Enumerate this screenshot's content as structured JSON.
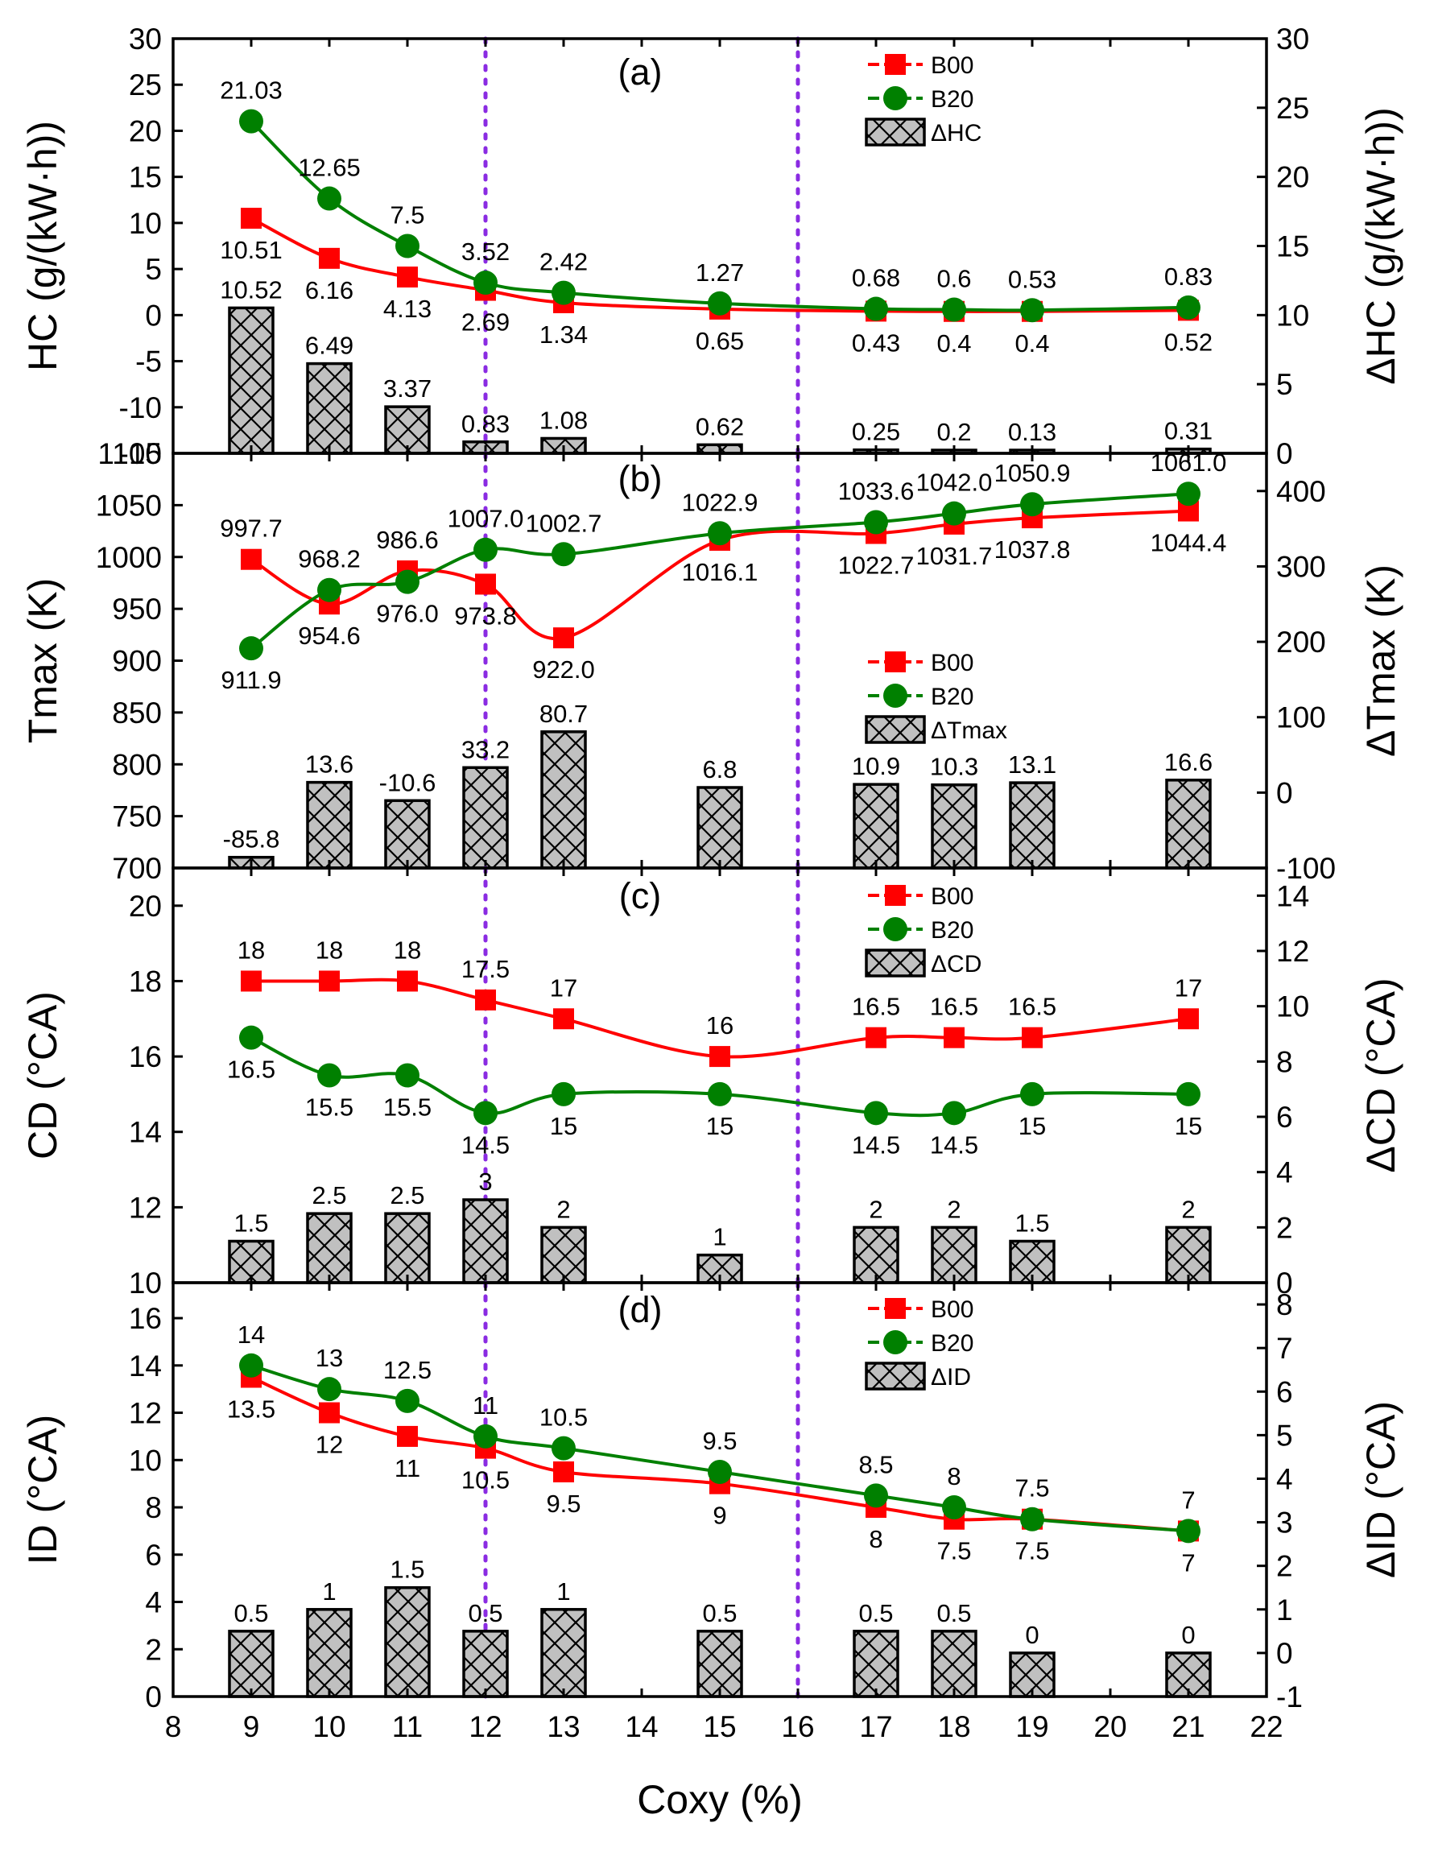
{
  "figure": {
    "xlabel": "Coxy (%)",
    "x_ticks": [
      8,
      9,
      10,
      11,
      12,
      13,
      14,
      15,
      16,
      17,
      18,
      19,
      20,
      21,
      22
    ],
    "xlim": [
      8,
      22
    ],
    "vlines": [
      12,
      16
    ],
    "colors": {
      "B00": "#ff0000",
      "B20": "#008000",
      "bar": "#c0c0c0",
      "vline": "#8a2be2"
    }
  },
  "chart_data": [
    {
      "type": "line+bar",
      "panel_label": "(a)",
      "ylabel": "HC (g/(kW·h))",
      "y2label": "ΔHC (g/(kW·h))",
      "ylim": [
        -15,
        30
      ],
      "y_ticks": [
        -15,
        -10,
        -5,
        0,
        5,
        10,
        15,
        20,
        25,
        30
      ],
      "y2lim": [
        0,
        30
      ],
      "y2_ticks": [
        0,
        5,
        10,
        15,
        20,
        25,
        30
      ],
      "x": [
        9,
        10,
        11,
        12,
        13,
        15,
        17,
        18,
        19,
        21
      ],
      "series": [
        {
          "name": "B00",
          "values": [
            10.51,
            6.16,
            4.13,
            2.69,
            1.34,
            0.65,
            0.43,
            0.4,
            0.4,
            0.52
          ],
          "labels": [
            "10.51",
            "6.16",
            "4.13",
            "2.69",
            "1.34",
            "0.65",
            "0.43",
            "0.4",
            "0.4",
            "0.52"
          ]
        },
        {
          "name": "B20",
          "values": [
            21.03,
            12.65,
            7.5,
            3.52,
            2.42,
            1.27,
            0.68,
            0.6,
            0.53,
            0.83
          ],
          "labels": [
            "21.03",
            "12.65",
            "7.5",
            "3.52",
            "2.42",
            "1.27",
            "0.68",
            "0.6",
            "0.53",
            "0.83"
          ]
        }
      ],
      "bars": {
        "name": "ΔHC",
        "values": [
          10.52,
          6.49,
          3.37,
          0.83,
          1.08,
          0.62,
          0.25,
          0.2,
          0.13,
          0.31
        ],
        "labels": [
          "10.52",
          "6.49",
          "3.37",
          "0.83",
          "1.08",
          "0.62",
          "0.25",
          "0.2",
          "0.13",
          "0.31"
        ]
      },
      "legend": [
        "B00",
        "B20",
        "ΔHC"
      ],
      "legend_position": "top-right"
    },
    {
      "type": "line+bar",
      "panel_label": "(b)",
      "ylabel": "Tmax (K)",
      "y2label": "ΔTmax (K)",
      "ylim": [
        700,
        1100
      ],
      "y_ticks": [
        700,
        750,
        800,
        850,
        900,
        950,
        1000,
        1050,
        1100
      ],
      "y2lim": [
        -100,
        450
      ],
      "y2_ticks": [
        -100,
        0,
        100,
        200,
        300,
        400
      ],
      "x": [
        9,
        10,
        11,
        12,
        13,
        15,
        17,
        18,
        19,
        21
      ],
      "series": [
        {
          "name": "B00",
          "values": [
            997.7,
            954.6,
            986.6,
            973.8,
            922.0,
            1016.1,
            1022.7,
            1031.7,
            1037.8,
            1044.4
          ],
          "labels": [
            "997.7",
            "954.6",
            "986.6",
            "973.8",
            "922.0",
            "1016.1",
            "1022.7",
            "1031.7",
            "1037.8",
            "1044.4"
          ]
        },
        {
          "name": "B20",
          "values": [
            911.9,
            968.2,
            976.0,
            1007.0,
            1002.7,
            1022.9,
            1033.6,
            1042.0,
            1050.9,
            1061.0
          ],
          "labels": [
            "911.9",
            "968.2",
            "976.0",
            "1007.0",
            "1002.7",
            "1022.9",
            "1033.6",
            "1042.0",
            "1050.9",
            "1061.0"
          ]
        }
      ],
      "bars": {
        "name": "ΔTmax",
        "values": [
          -85.8,
          13.6,
          -10.6,
          33.2,
          80.7,
          6.8,
          10.9,
          10.3,
          13.1,
          16.6
        ],
        "labels": [
          "-85.8",
          "13.6",
          "-10.6",
          "33.2",
          "80.7",
          "6.8",
          "10.9",
          "10.3",
          "13.1",
          "16.6"
        ]
      },
      "legend": [
        "B00",
        "B20",
        "ΔTmax"
      ],
      "legend_position": "center-right"
    },
    {
      "type": "line+bar",
      "panel_label": "(c)",
      "ylabel": "CD (°CA)",
      "y2label": "ΔCD (°CA)",
      "ylim": [
        10,
        21
      ],
      "y_ticks": [
        10,
        12,
        14,
        16,
        18,
        20
      ],
      "y2lim": [
        0,
        15
      ],
      "y2_ticks": [
        0,
        2,
        4,
        6,
        8,
        10,
        12,
        14
      ],
      "x": [
        9,
        10,
        11,
        12,
        13,
        15,
        17,
        18,
        19,
        21
      ],
      "series": [
        {
          "name": "B00",
          "values": [
            18,
            18,
            18,
            17.5,
            17,
            16,
            16.5,
            16.5,
            16.5,
            17
          ],
          "labels": [
            "18",
            "18",
            "18",
            "17.5",
            "17",
            "16",
            "16.5",
            "16.5",
            "16.5",
            "17"
          ]
        },
        {
          "name": "B20",
          "values": [
            16.5,
            15.5,
            15.5,
            14.5,
            15,
            15,
            14.5,
            14.5,
            15,
            15
          ],
          "labels": [
            "16.5",
            "15.5",
            "15.5",
            "14.5",
            "15",
            "15",
            "14.5",
            "14.5",
            "15",
            "15"
          ]
        }
      ],
      "bars": {
        "name": "ΔCD",
        "values": [
          1.5,
          2.5,
          2.5,
          3,
          2,
          1,
          2,
          2,
          1.5,
          2
        ],
        "labels": [
          "1.5",
          "2.5",
          "2.5",
          "3",
          "2",
          "1",
          "2",
          "2",
          "1.5",
          "2"
        ]
      },
      "legend": [
        "B00",
        "B20",
        "ΔCD"
      ],
      "legend_position": "top-right"
    },
    {
      "type": "line+bar",
      "panel_label": "(d)",
      "ylabel": "ID (°CA)",
      "y2label": "ΔID (°CA)",
      "ylim": [
        0,
        17.5
      ],
      "y_ticks": [
        0,
        2,
        4,
        6,
        8,
        10,
        12,
        14,
        16
      ],
      "y2lim": [
        -1,
        8.5
      ],
      "y2_ticks": [
        -1,
        0,
        1,
        2,
        3,
        4,
        5,
        6,
        7,
        8
      ],
      "x": [
        9,
        10,
        11,
        12,
        13,
        15,
        17,
        18,
        19,
        21
      ],
      "series": [
        {
          "name": "B00",
          "values": [
            13.5,
            12,
            11,
            10.5,
            9.5,
            9,
            8,
            7.5,
            7.5,
            7
          ],
          "labels": [
            "13.5",
            "12",
            "11",
            "10.5",
            "9.5",
            "9",
            "8",
            "7.5",
            "7.5",
            "7"
          ]
        },
        {
          "name": "B20",
          "values": [
            14,
            13,
            12.5,
            11,
            10.5,
            9.5,
            8.5,
            8,
            7.5,
            7
          ],
          "labels": [
            "14",
            "13",
            "12.5",
            "11",
            "10.5",
            "9.5",
            "8.5",
            "8",
            "7.5",
            "7"
          ]
        }
      ],
      "bars": {
        "name": "ΔID",
        "values": [
          0.5,
          1,
          1.5,
          0.5,
          1,
          0.5,
          0.5,
          0.5,
          0,
          0
        ],
        "labels": [
          "0.5",
          "1",
          "1.5",
          "0.5",
          "1",
          "0.5",
          "0.5",
          "0.5",
          "0",
          "0"
        ]
      },
      "legend": [
        "B00",
        "B20",
        "ΔID"
      ],
      "legend_position": "top-right"
    }
  ]
}
